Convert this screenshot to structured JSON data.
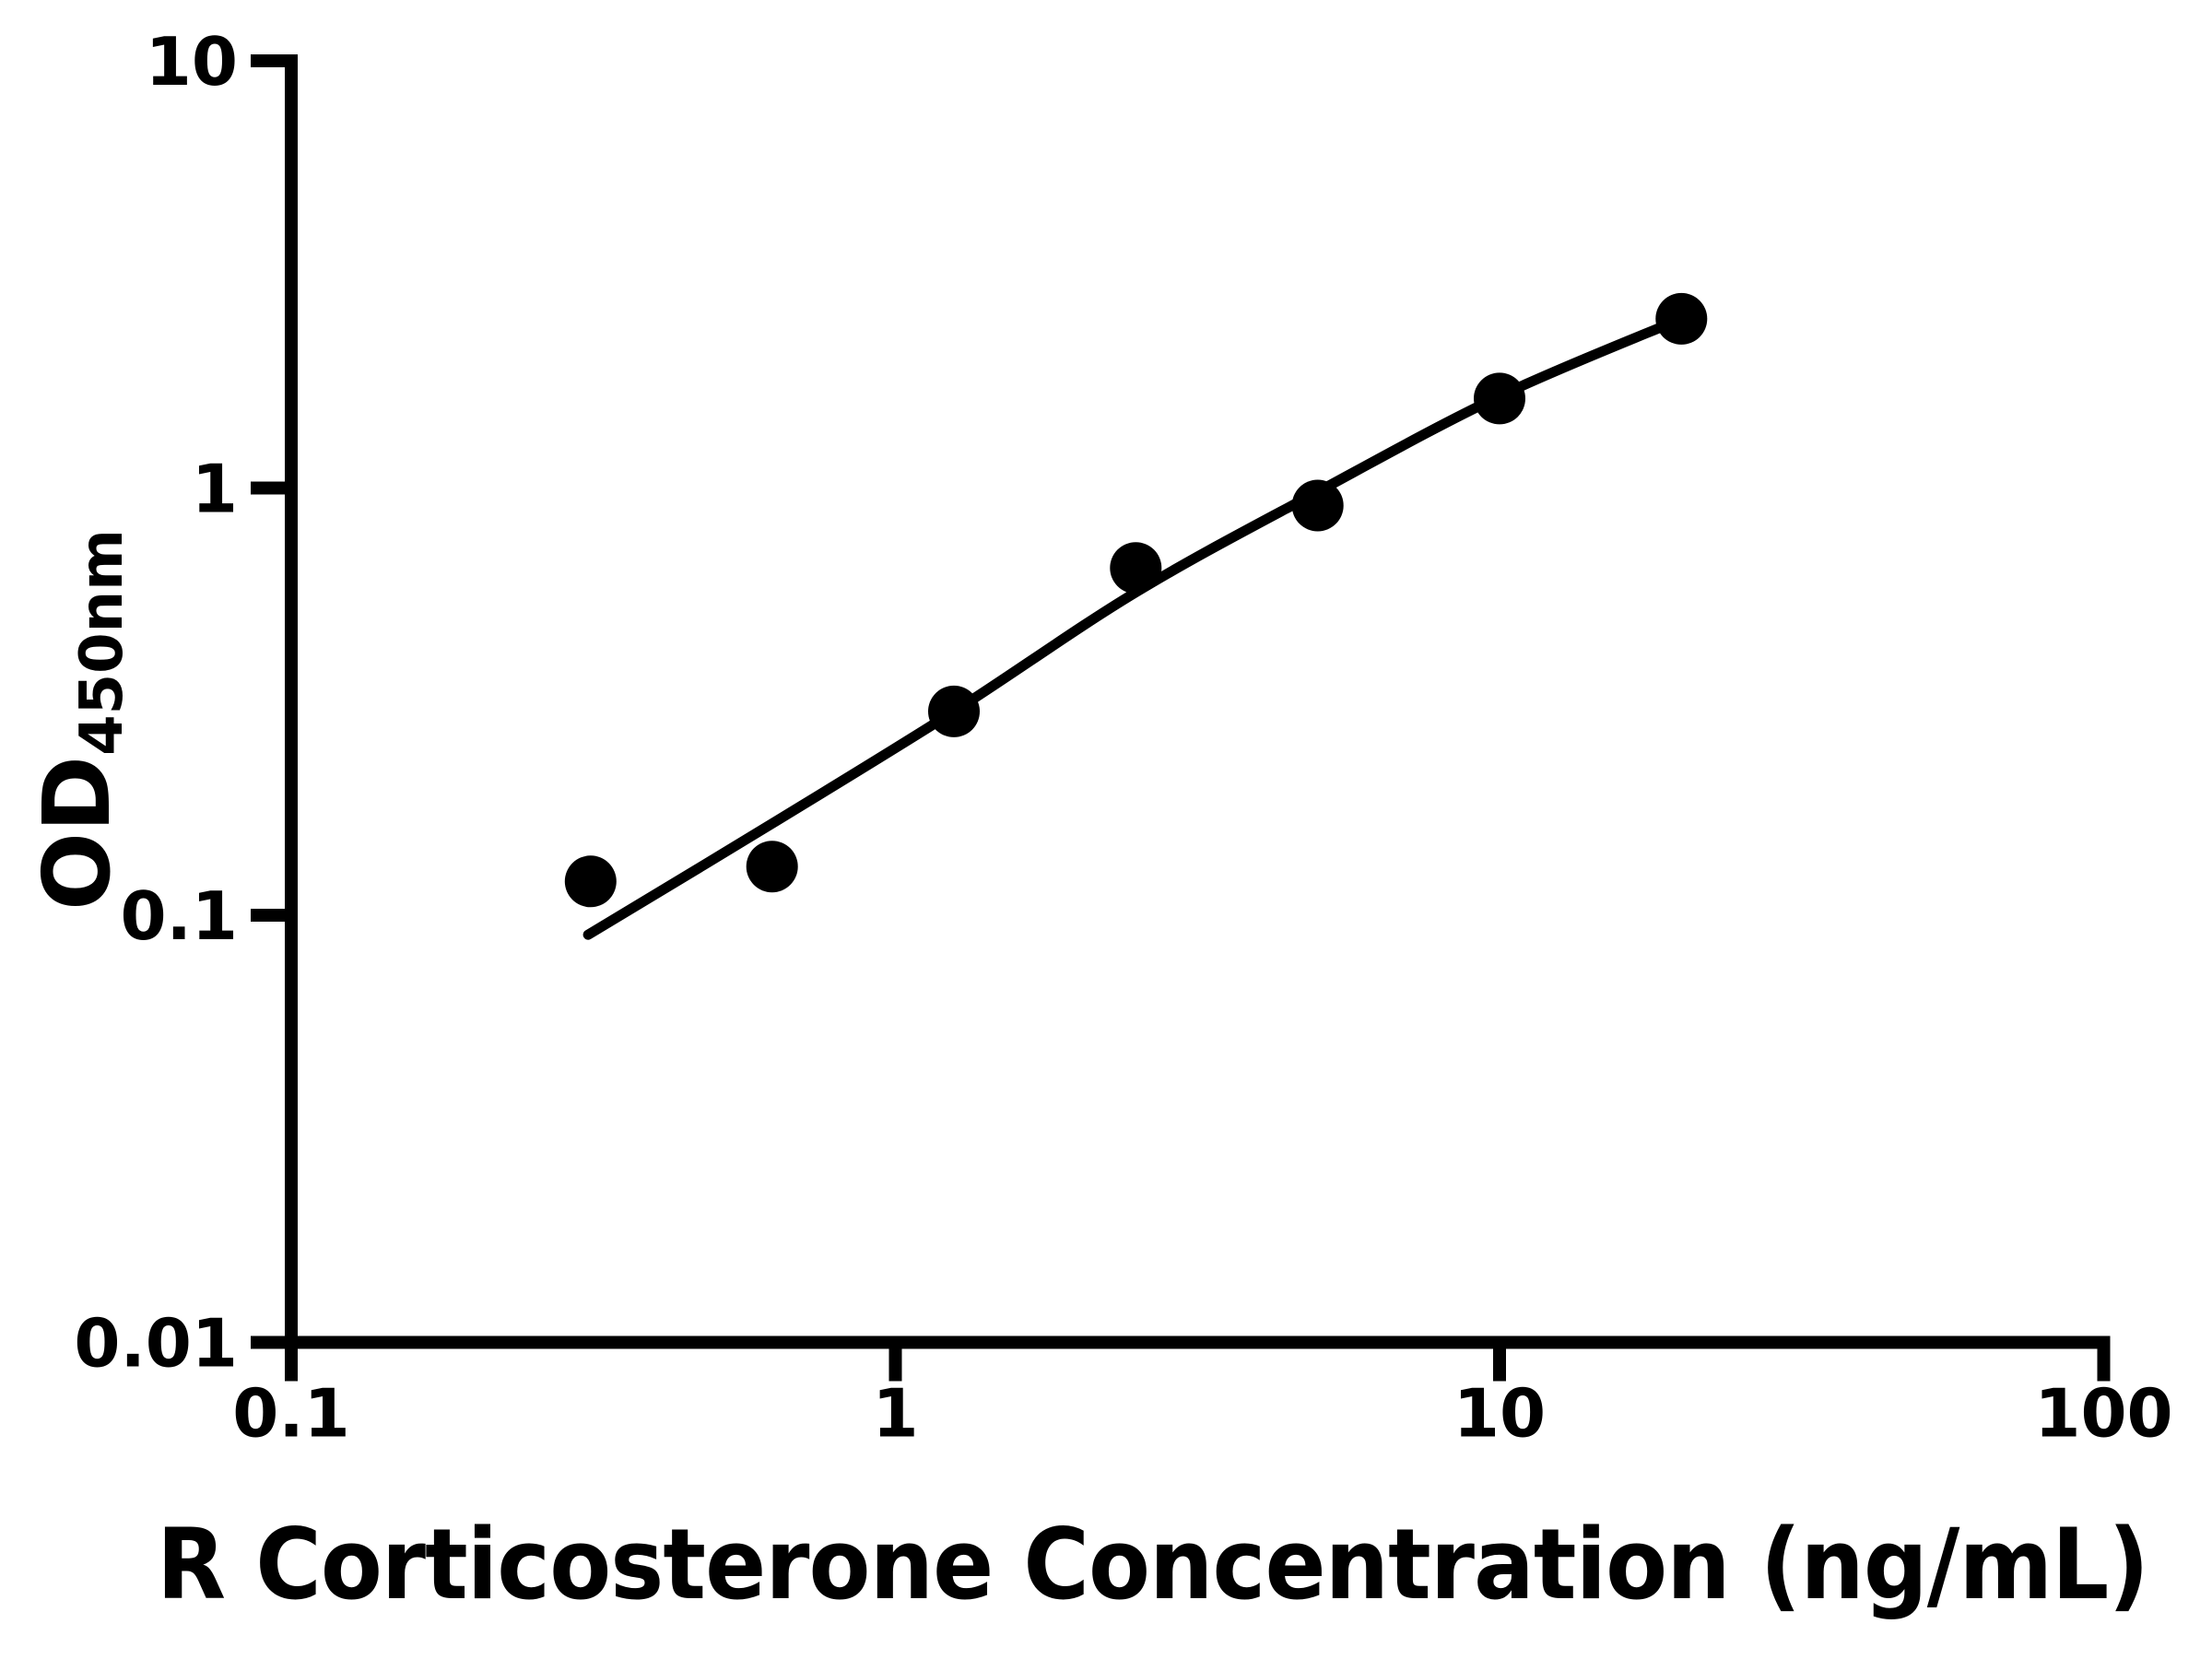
{
  "chart_data": {
    "type": "scatter",
    "title": "",
    "xlabel": "R Corticosterone Concentration (ng/mL)",
    "ylabel_main": "OD",
    "ylabel_sub": "450nm",
    "x_scale": "log",
    "y_scale": "log",
    "xlim": [
      0.1,
      100
    ],
    "ylim": [
      0.01,
      10
    ],
    "grid": false,
    "legend": null,
    "x_ticks": [
      {
        "value": 0.1,
        "label": "0.1"
      },
      {
        "value": 1,
        "label": "1"
      },
      {
        "value": 10,
        "label": "10"
      },
      {
        "value": 100,
        "label": "100"
      }
    ],
    "y_ticks": [
      {
        "value": 10,
        "label": "10"
      },
      {
        "value": 1,
        "label": "1"
      },
      {
        "value": 0.1,
        "label": "0.1"
      },
      {
        "value": 0.01,
        "label": "0.01"
      }
    ],
    "series": [
      {
        "name": "standard-points",
        "type": "scatter",
        "marker": "filled-circle",
        "x": [
          0.313,
          0.625,
          1.25,
          2.5,
          5,
          10,
          20
        ],
        "y": [
          0.12,
          0.13,
          0.3,
          0.65,
          0.91,
          1.62,
          2.49
        ]
      }
    ],
    "fit_curve": {
      "name": "fitted-standard-curve",
      "x": [
        0.31,
        0.63,
        1.25,
        2.5,
        5,
        10,
        20
      ],
      "y": [
        0.09,
        0.165,
        0.3,
        0.57,
        0.98,
        1.64,
        2.49
      ]
    },
    "colors": {
      "points": "#000000",
      "line": "#000000",
      "axis": "#000000",
      "background": "#ffffff"
    }
  }
}
